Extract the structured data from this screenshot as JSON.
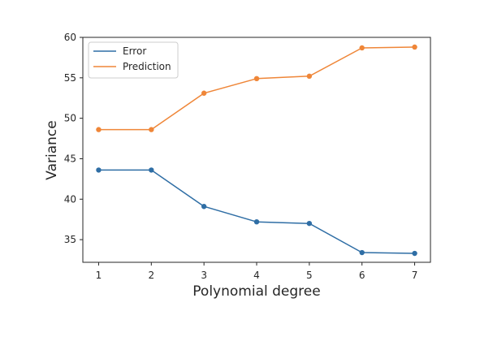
{
  "chart_data": {
    "type": "line",
    "xlabel": "Polynomial degree",
    "ylabel": "Variance",
    "x": [
      1,
      2,
      3,
      4,
      5,
      6,
      7
    ],
    "xlim": [
      0.7,
      7.3
    ],
    "ylim": [
      32.2,
      60.0
    ],
    "xticks": [
      "1",
      "2",
      "3",
      "4",
      "5",
      "6",
      "7"
    ],
    "yticks": [
      "35",
      "40",
      "45",
      "50",
      "55",
      "60"
    ],
    "grid": false,
    "legend_position": "top-left",
    "series": [
      {
        "name": "Error",
        "color": "#2f6ea5",
        "values": [
          43.6,
          43.6,
          39.1,
          37.2,
          37.0,
          33.4,
          33.3
        ]
      },
      {
        "name": "Prediction",
        "color": "#ef8638",
        "values": [
          48.6,
          48.6,
          53.1,
          54.9,
          55.2,
          58.7,
          58.8
        ]
      }
    ]
  }
}
